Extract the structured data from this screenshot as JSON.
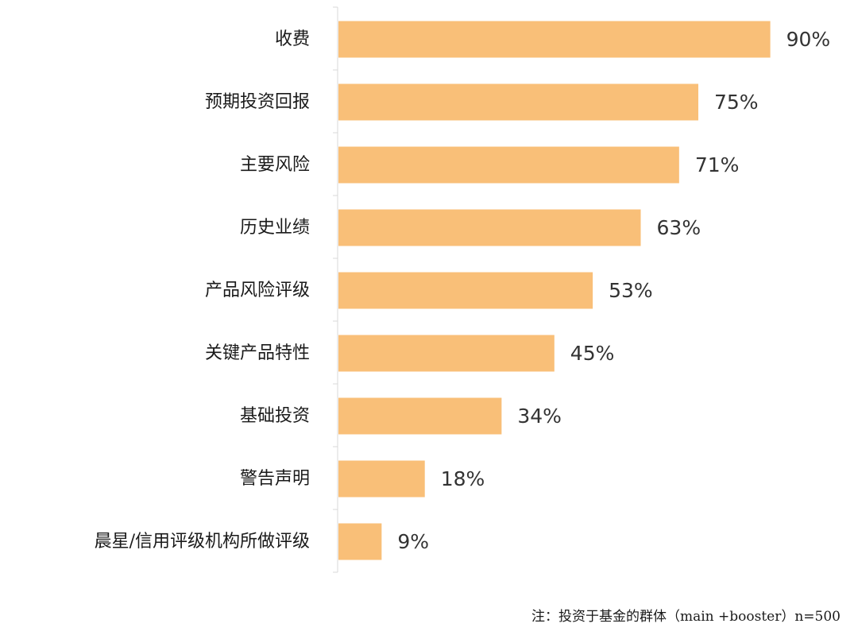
{
  "chart_data": {
    "type": "bar",
    "orientation": "horizontal",
    "categories": [
      "收费",
      "预期投资回报",
      "主要风险",
      "历史业绩",
      "产品风险评级",
      "关键产品特性",
      "基础投资",
      "警告声明",
      "晨星/信用评级机构所做评级"
    ],
    "values": [
      90,
      75,
      71,
      63,
      53,
      45,
      34,
      18,
      9
    ],
    "value_labels": [
      "90%",
      "75%",
      "71%",
      "63%",
      "53%",
      "45%",
      "34%",
      "18%",
      "9%"
    ],
    "bar_color": "#f9bf78",
    "axis_color": "#d9d9d9",
    "xlim": [
      0,
      100
    ],
    "grid": false,
    "legend": "none"
  },
  "footnote": "注：投资于基金的群体（main +booster）n=500"
}
